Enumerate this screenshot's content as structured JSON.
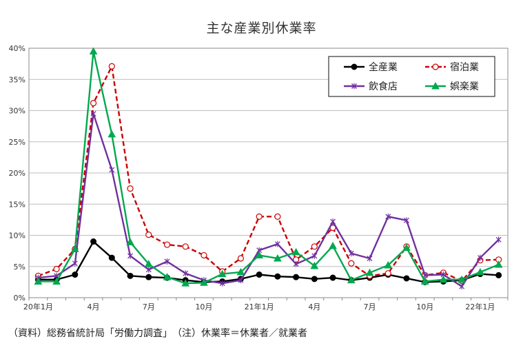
{
  "chart_data": {
    "type": "line",
    "title": "主な産業別休業率",
    "ylim": [
      0,
      40
    ],
    "yticks": [
      "0%",
      "5%",
      "10%",
      "15%",
      "20%",
      "25%",
      "30%",
      "35%",
      "40%"
    ],
    "x": [
      "20年1月",
      "2月",
      "3月",
      "4月",
      "5月",
      "6月",
      "7月",
      "8月",
      "9月",
      "10月",
      "11月",
      "12月",
      "21年1月",
      "2月",
      "3月",
      "4月",
      "5月",
      "6月",
      "7月",
      "8月",
      "9月",
      "10月",
      "11月",
      "12月",
      "22年1月",
      "2月"
    ],
    "xtick_labels": [
      {
        "index": 0,
        "label": "20年1月"
      },
      {
        "index": 3,
        "label": "4月"
      },
      {
        "index": 6,
        "label": "7月"
      },
      {
        "index": 9,
        "label": "10月"
      },
      {
        "index": 12,
        "label": "21年1月"
      },
      {
        "index": 15,
        "label": "4月"
      },
      {
        "index": 18,
        "label": "7月"
      },
      {
        "index": 21,
        "label": "10月"
      },
      {
        "index": 24,
        "label": "22年1月"
      }
    ],
    "grid": true,
    "legend_position": "top-right",
    "series": [
      {
        "name": "全産業",
        "color": "#000000",
        "marker": "circle",
        "dash": "solid",
        "values": [
          2.9,
          2.9,
          3.7,
          9.0,
          6.4,
          3.5,
          3.3,
          3.2,
          2.8,
          2.5,
          2.6,
          3.0,
          3.7,
          3.4,
          3.3,
          3.0,
          3.2,
          2.8,
          3.2,
          3.7,
          3.1,
          2.5,
          2.6,
          2.8,
          3.8,
          3.6
        ]
      },
      {
        "name": "宿泊業",
        "color": "#cc0000",
        "marker": "open-circle",
        "dash": "dashed",
        "values": [
          3.5,
          4.6,
          7.8,
          31.2,
          37.1,
          17.5,
          10.1,
          8.5,
          8.2,
          6.8,
          4.2,
          6.3,
          13.0,
          13.0,
          6.1,
          8.2,
          11.2,
          5.5,
          3.5,
          3.9,
          8.2,
          3.6,
          4.0,
          2.7,
          6.0,
          6.1
        ]
      },
      {
        "name": "飲食店",
        "color": "#7030a0",
        "marker": "x",
        "dash": "solid",
        "values": [
          3.2,
          3.5,
          5.5,
          29.5,
          20.5,
          6.7,
          4.5,
          5.8,
          3.9,
          2.8,
          2.3,
          2.8,
          7.6,
          8.6,
          5.4,
          6.7,
          12.2,
          7.1,
          6.3,
          13.0,
          12.4,
          3.6,
          3.7,
          1.8,
          6.4,
          9.3
        ]
      },
      {
        "name": "娯楽業",
        "color": "#00a84f",
        "marker": "triangle",
        "dash": "solid",
        "values": [
          2.6,
          2.6,
          7.8,
          39.5,
          26.2,
          8.9,
          5.4,
          3.3,
          2.3,
          2.4,
          3.8,
          4.1,
          6.8,
          6.3,
          7.3,
          5.1,
          8.3,
          2.8,
          4.0,
          5.2,
          8.0,
          2.6,
          2.9,
          2.9,
          4.1,
          5.3
        ]
      }
    ]
  },
  "footer": {
    "note": "（資料）総務省統計局「労働力調査」　（注）休業率＝休業者／就業者"
  }
}
